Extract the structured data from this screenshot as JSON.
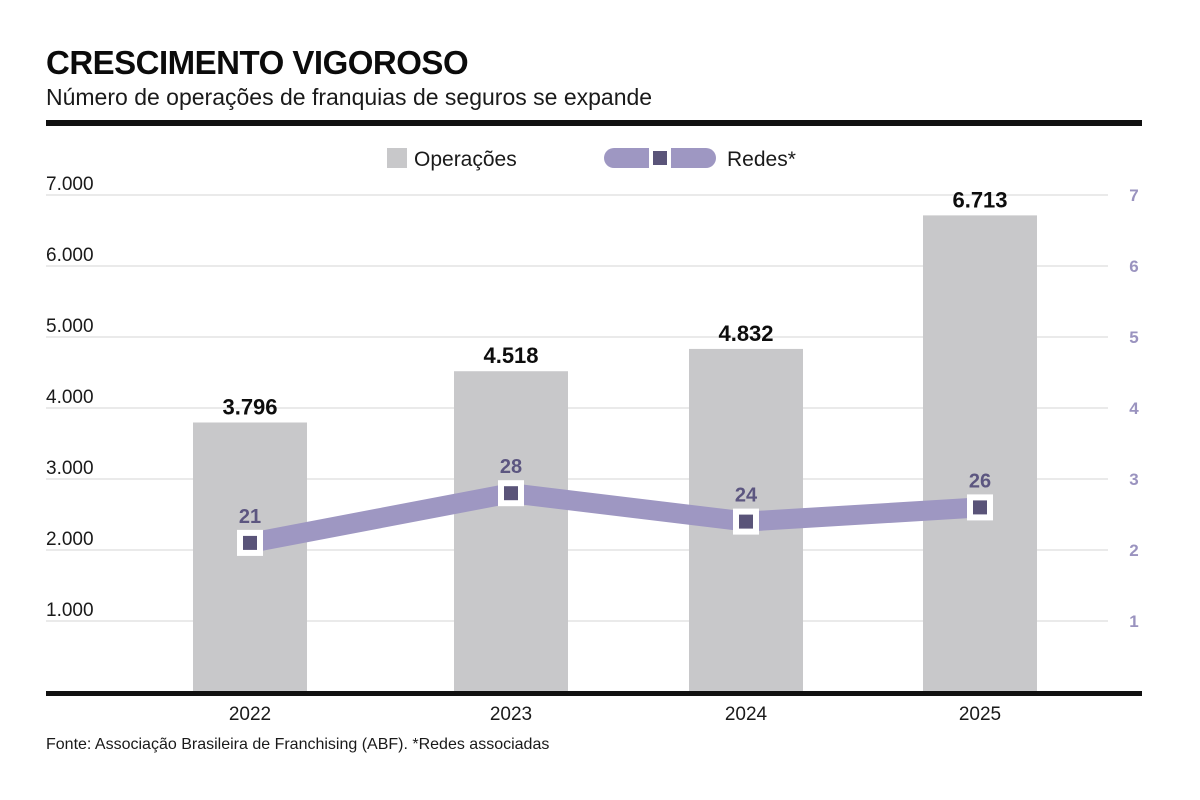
{
  "header": {
    "title": "CRESCIMENTO VIGOROSO",
    "subtitle": "Número de operações de franquias de seguros se expande"
  },
  "footer": {
    "source": "Fonte: Associação Brasileira de Franchising (ABF). *Redes associadas"
  },
  "colors": {
    "bar": "#c8c8ca",
    "line": "#9e97c2",
    "marker": "#5a5479",
    "marker_outline": "#ffffff",
    "grid": "#d4d4d4",
    "axis": "#111111"
  },
  "chart_data": {
    "type": "bar",
    "categories": [
      "2022",
      "2023",
      "2024",
      "2025"
    ],
    "series": [
      {
        "name": "Operações",
        "type": "bar",
        "axis": "left",
        "values": [
          3796,
          4518,
          4832,
          6713
        ],
        "labels": [
          "3.796",
          "4.518",
          "4.832",
          "6.713"
        ]
      },
      {
        "name": "Redes*",
        "type": "line",
        "axis": "right",
        "values": [
          21,
          28,
          24,
          26
        ],
        "labels": [
          "21",
          "28",
          "24",
          "26"
        ]
      }
    ],
    "left_axis": {
      "ylim": [
        0,
        7000
      ],
      "ticks": [
        1000,
        2000,
        3000,
        4000,
        5000,
        6000,
        7000
      ],
      "tick_labels": [
        "1.000",
        "2.000",
        "3.000",
        "4.000",
        "5.000",
        "6.000",
        "7.000"
      ]
    },
    "right_axis": {
      "ylim": [
        0,
        7
      ],
      "ticks": [
        1,
        2,
        3,
        4,
        5,
        6,
        7
      ],
      "tick_labels": [
        "1",
        "2",
        "3",
        "4",
        "5",
        "6",
        "7"
      ]
    },
    "grid": true,
    "legend": {
      "placement": "top-center",
      "entries": [
        "Operações",
        "Redes*"
      ]
    }
  }
}
